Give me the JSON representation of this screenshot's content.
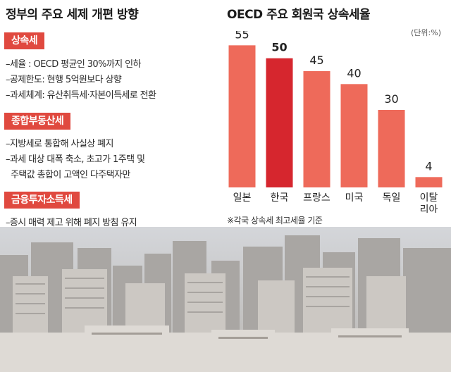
{
  "left_panel": {
    "title": "정부의 주요 세제 개편 방향",
    "sections": [
      {
        "label": "상속세",
        "bullets": [
          "–세율 : OECD 평균인 30%까지 인하",
          "–공제한도: 현행 5억원보다 상향",
          "–과세체계: 유산취득세·자본이득세로 전환"
        ]
      },
      {
        "label": "종합부동산세",
        "bullets": [
          "–지방세로 통합해 사실상 폐지",
          "–과세 대상 대폭 축소, 초고가 1주택 및",
          "  주택값 총합이 고액인 다주택자만"
        ]
      },
      {
        "label": "금융투자소득세",
        "bullets": [
          "–증시 매력 제고 위해 폐지 방침 유지"
        ]
      }
    ]
  },
  "chart_data": {
    "type": "bar",
    "title": "OECD 주요 회원국 상속세율",
    "unit": "(단위:%)",
    "categories": [
      "일본",
      "한국",
      "프랑스",
      "미국",
      "독일",
      "이탈\n리아"
    ],
    "values": [
      55,
      50,
      45,
      40,
      30,
      4
    ],
    "value_labels": [
      "55",
      "50",
      "45",
      "40",
      "30",
      "4"
    ],
    "highlight_index": 1,
    "ylim": [
      0,
      60
    ],
    "footnote": "※각국 상속세 최고세율 기준",
    "colors": {
      "bar": "#ee6a5a",
      "highlight": "#d6262e",
      "text": "#222222"
    }
  }
}
